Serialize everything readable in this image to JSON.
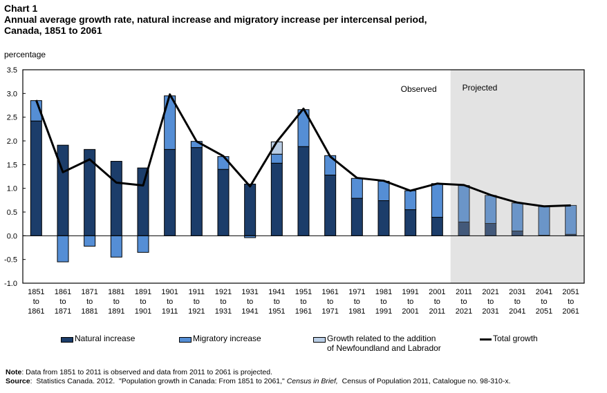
{
  "header": {
    "chart_no": "Chart 1",
    "title_line1": "Annual average growth rate, natural increase and migratory increase per intercensal period,",
    "title_line2": "Canada,  1851 to 2061"
  },
  "chart_data": {
    "type": "bar",
    "stacked": true,
    "ylabel": "percentage",
    "ylim": [
      -1.0,
      3.5
    ],
    "yticks": [
      "3.5",
      "3.0",
      "2.5",
      "2.0",
      "1.5",
      "1.0",
      "0.5",
      "0.0",
      "-0.5",
      "-1.0"
    ],
    "categories": [
      [
        "1851",
        "to",
        "1861"
      ],
      [
        "1861",
        "to",
        "1871"
      ],
      [
        "1871",
        "to",
        "1881"
      ],
      [
        "1881",
        "to",
        "1891"
      ],
      [
        "1891",
        "to",
        "1901"
      ],
      [
        "1901",
        "to",
        "1911"
      ],
      [
        "1911",
        "to",
        "1921"
      ],
      [
        "1921",
        "to",
        "1931"
      ],
      [
        "1931",
        "to",
        "1941"
      ],
      [
        "1941",
        "to",
        "1951"
      ],
      [
        "1951",
        "to",
        "1961"
      ],
      [
        "1961",
        "to",
        "1971"
      ],
      [
        "1971",
        "to",
        "1981"
      ],
      [
        "1981",
        "to",
        "1991"
      ],
      [
        "1991",
        "to",
        "2001"
      ],
      [
        "2001",
        "to",
        "2011"
      ],
      [
        "2011",
        "to",
        "2021"
      ],
      [
        "2021",
        "to",
        "2031"
      ],
      [
        "2031",
        "to",
        "2041"
      ],
      [
        "2041",
        "to",
        "2051"
      ],
      [
        "2051",
        "to",
        "2061"
      ]
    ],
    "series": [
      {
        "name": "Natural increase",
        "color": "#1c3d6a",
        "values": [
          2.42,
          1.91,
          1.82,
          1.57,
          1.43,
          1.82,
          1.86,
          1.4,
          1.09,
          1.53,
          1.88,
          1.28,
          0.79,
          0.74,
          0.55,
          0.39,
          0.29,
          0.26,
          0.1,
          0.01,
          0.03
        ]
      },
      {
        "name": "Migratory increase",
        "color": "#558ed5",
        "values": [
          0.43,
          -0.55,
          -0.22,
          -0.45,
          -0.35,
          1.13,
          0.13,
          0.27,
          -0.04,
          0.19,
          0.78,
          0.41,
          0.42,
          0.41,
          0.4,
          0.71,
          0.77,
          0.59,
          0.59,
          0.61,
          0.61
        ]
      },
      {
        "name": "Growth related to the addition of Newfoundland and Labrador",
        "color": "#b9cde5",
        "values": [
          0,
          0,
          0,
          0,
          0,
          0,
          0,
          0,
          0,
          0.26,
          0,
          0,
          0,
          0,
          0,
          0,
          0,
          0,
          0,
          0,
          0
        ]
      },
      {
        "name": "Total growth",
        "type": "line",
        "color": "#000000",
        "values": [
          2.86,
          1.34,
          1.61,
          1.12,
          1.06,
          2.98,
          1.99,
          1.68,
          1.04,
          1.98,
          2.68,
          1.67,
          1.22,
          1.16,
          0.95,
          1.1,
          1.07,
          0.86,
          0.7,
          0.62,
          0.64
        ]
      }
    ],
    "annotations": {
      "observed": "Observed",
      "projected": "Projected"
    },
    "projected_from_index": 16,
    "projected_colors": {
      "natural": "#43597a",
      "migratory": "#6b95c8",
      "shade": "#e3e3e3"
    },
    "legend_position": "bottom",
    "grid": false
  },
  "legend": {
    "natural": "Natural increase",
    "migratory": "Migratory increase",
    "nl_line1": "Growth related to the addition",
    "nl_line2": "of Newfoundland and Labrador",
    "total": "Total growth"
  },
  "footer": {
    "note_label": "Note",
    "note_text": ": Data  from 1851  to 2011  is observed and data from 2011 to 2061 is projected.",
    "source_label": "Source",
    "source_text1": ":  Statistics Canada. 2012.  \"Population growth in Canada: From 1851 to 2061,\" ",
    "source_italic": "Census in Brief,",
    "source_text2": "  Census of Population 2011, Catalogue no. 98-310-x."
  }
}
